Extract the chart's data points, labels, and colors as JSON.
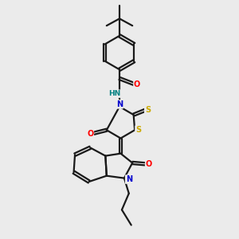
{
  "bg_color": "#ebebeb",
  "bond_color": "#1a1a1a",
  "bond_width": 1.6,
  "dbl_off": 0.055,
  "atom_colors": {
    "O": "#ff0000",
    "N": "#0000cd",
    "S": "#ccaa00",
    "H": "#008080",
    "C": "#1a1a1a"
  },
  "font_size": 7.0,
  "figsize": [
    3.0,
    3.0
  ],
  "dpi": 100
}
